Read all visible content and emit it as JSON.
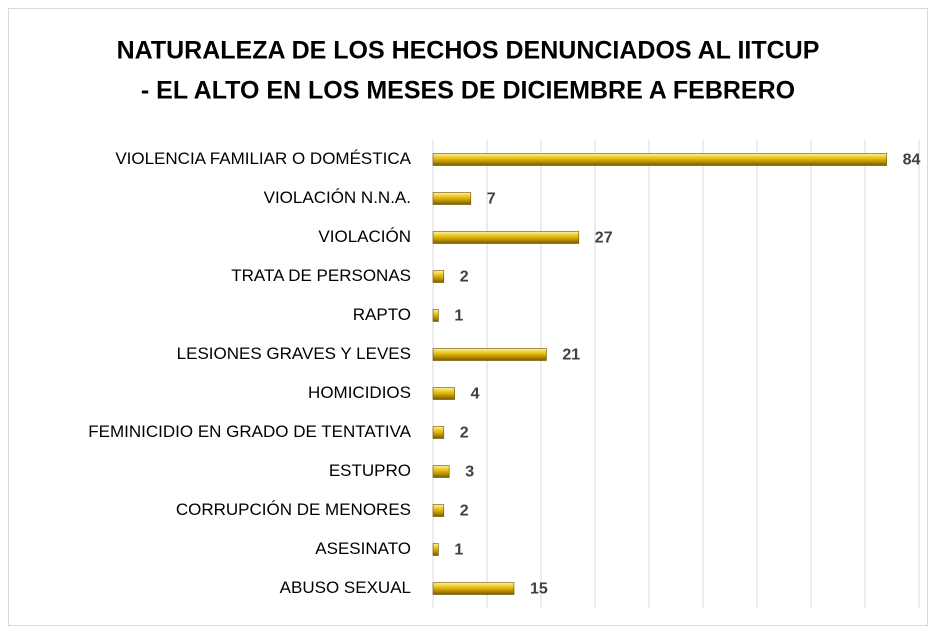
{
  "chart_data": {
    "type": "bar",
    "orientation": "horizontal",
    "title": [
      "NATURALEZA DE LOS HECHOS DENUNCIADOS AL IITCUP",
      "- EL ALTO EN LOS MESES DE DICIEMBRE A FEBRERO"
    ],
    "categories": [
      "VIOLENCIA FAMILIAR O DOMÉSTICA",
      "VIOLACIÓN N.N.A.",
      "VIOLACIÓN",
      "TRATA DE PERSONAS",
      "RAPTO",
      "LESIONES GRAVES Y LEVES",
      "HOMICIDIOS",
      "FEMINICIDIO EN GRADO DE TENTATIVA",
      "ESTUPRO",
      "CORRUPCIÓN DE MENORES",
      "ASESINATO",
      "ABUSO SEXUAL"
    ],
    "values": [
      84,
      7,
      27,
      2,
      1,
      21,
      4,
      2,
      3,
      2,
      1,
      15
    ],
    "color": "#e6b800",
    "xlim": [
      0,
      90
    ],
    "xticks": [
      0,
      10,
      20,
      30,
      40,
      50,
      60,
      70,
      80,
      90
    ],
    "grid": true
  }
}
